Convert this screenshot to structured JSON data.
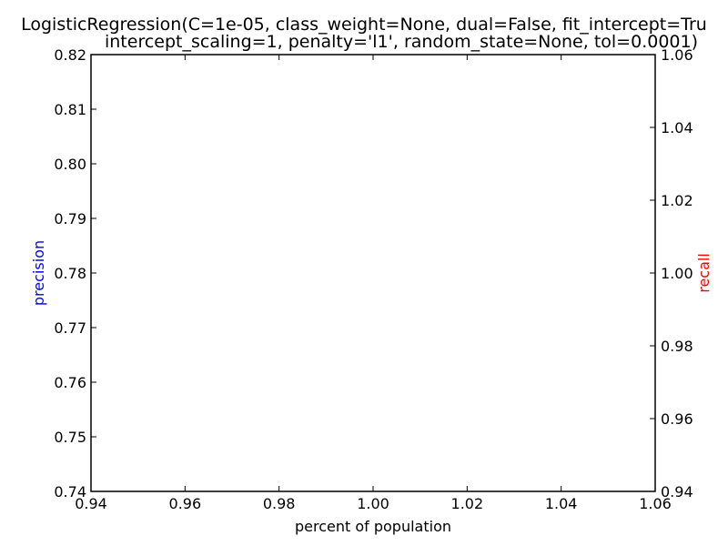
{
  "chart_data": {
    "type": "line",
    "title_lines": [
      "LogisticRegression(C=1e-05, class_weight=None, dual=False, fit_intercept=Tru",
      "intercept_scaling=1, penalty='l1', random_state=None, tol=0.0001)"
    ],
    "xlabel": "percent of population",
    "ylabel_left": "precision",
    "ylabel_right": "recall",
    "xlim": [
      0.94,
      1.06
    ],
    "ylim_left": [
      0.74,
      0.82
    ],
    "ylim_right": [
      0.94,
      1.06
    ],
    "x_ticks": [
      "0.94",
      "0.96",
      "0.98",
      "1.00",
      "1.02",
      "1.04",
      "1.06"
    ],
    "y_left_ticks": [
      "0.74",
      "0.75",
      "0.76",
      "0.77",
      "0.78",
      "0.79",
      "0.80",
      "0.81",
      "0.82"
    ],
    "y_right_ticks": [
      "0.94",
      "0.96",
      "0.98",
      "1.00",
      "1.02",
      "1.04",
      "1.06"
    ],
    "grid": false,
    "series": [],
    "colors": {
      "left_axis_label": "#0000ff",
      "right_axis_label": "#ff0000",
      "axes": "#000000"
    }
  }
}
